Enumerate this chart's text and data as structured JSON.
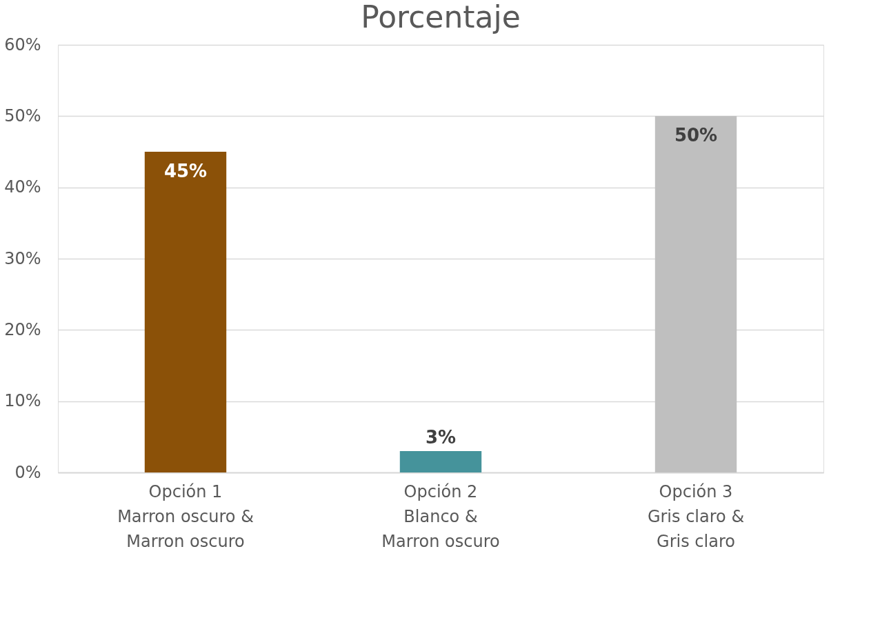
{
  "chart_data": {
    "type": "bar",
    "title": "Porcentaje",
    "categories": [
      "Opción 1\nMarron oscuro &\nMarron oscuro",
      "Opción 2\nBlanco &\nMarron oscuro",
      "Opción 3\nGris claro &\nGris claro"
    ],
    "values": [
      45,
      3,
      50
    ],
    "colors": [
      "#8b5108",
      "#45939b",
      "#bfbfbf"
    ],
    "value_labels": [
      "45%",
      "3%",
      "50%"
    ],
    "ylim": [
      0,
      60
    ],
    "yticks": [
      {
        "value": 0,
        "label": "0%"
      },
      {
        "value": 10,
        "label": "10%"
      },
      {
        "value": 20,
        "label": "20%"
      },
      {
        "value": 30,
        "label": "30%"
      },
      {
        "value": 40,
        "label": "40%"
      },
      {
        "value": 50,
        "label": "50%"
      },
      {
        "value": 60,
        "label": "60%"
      }
    ],
    "grid": "y"
  }
}
